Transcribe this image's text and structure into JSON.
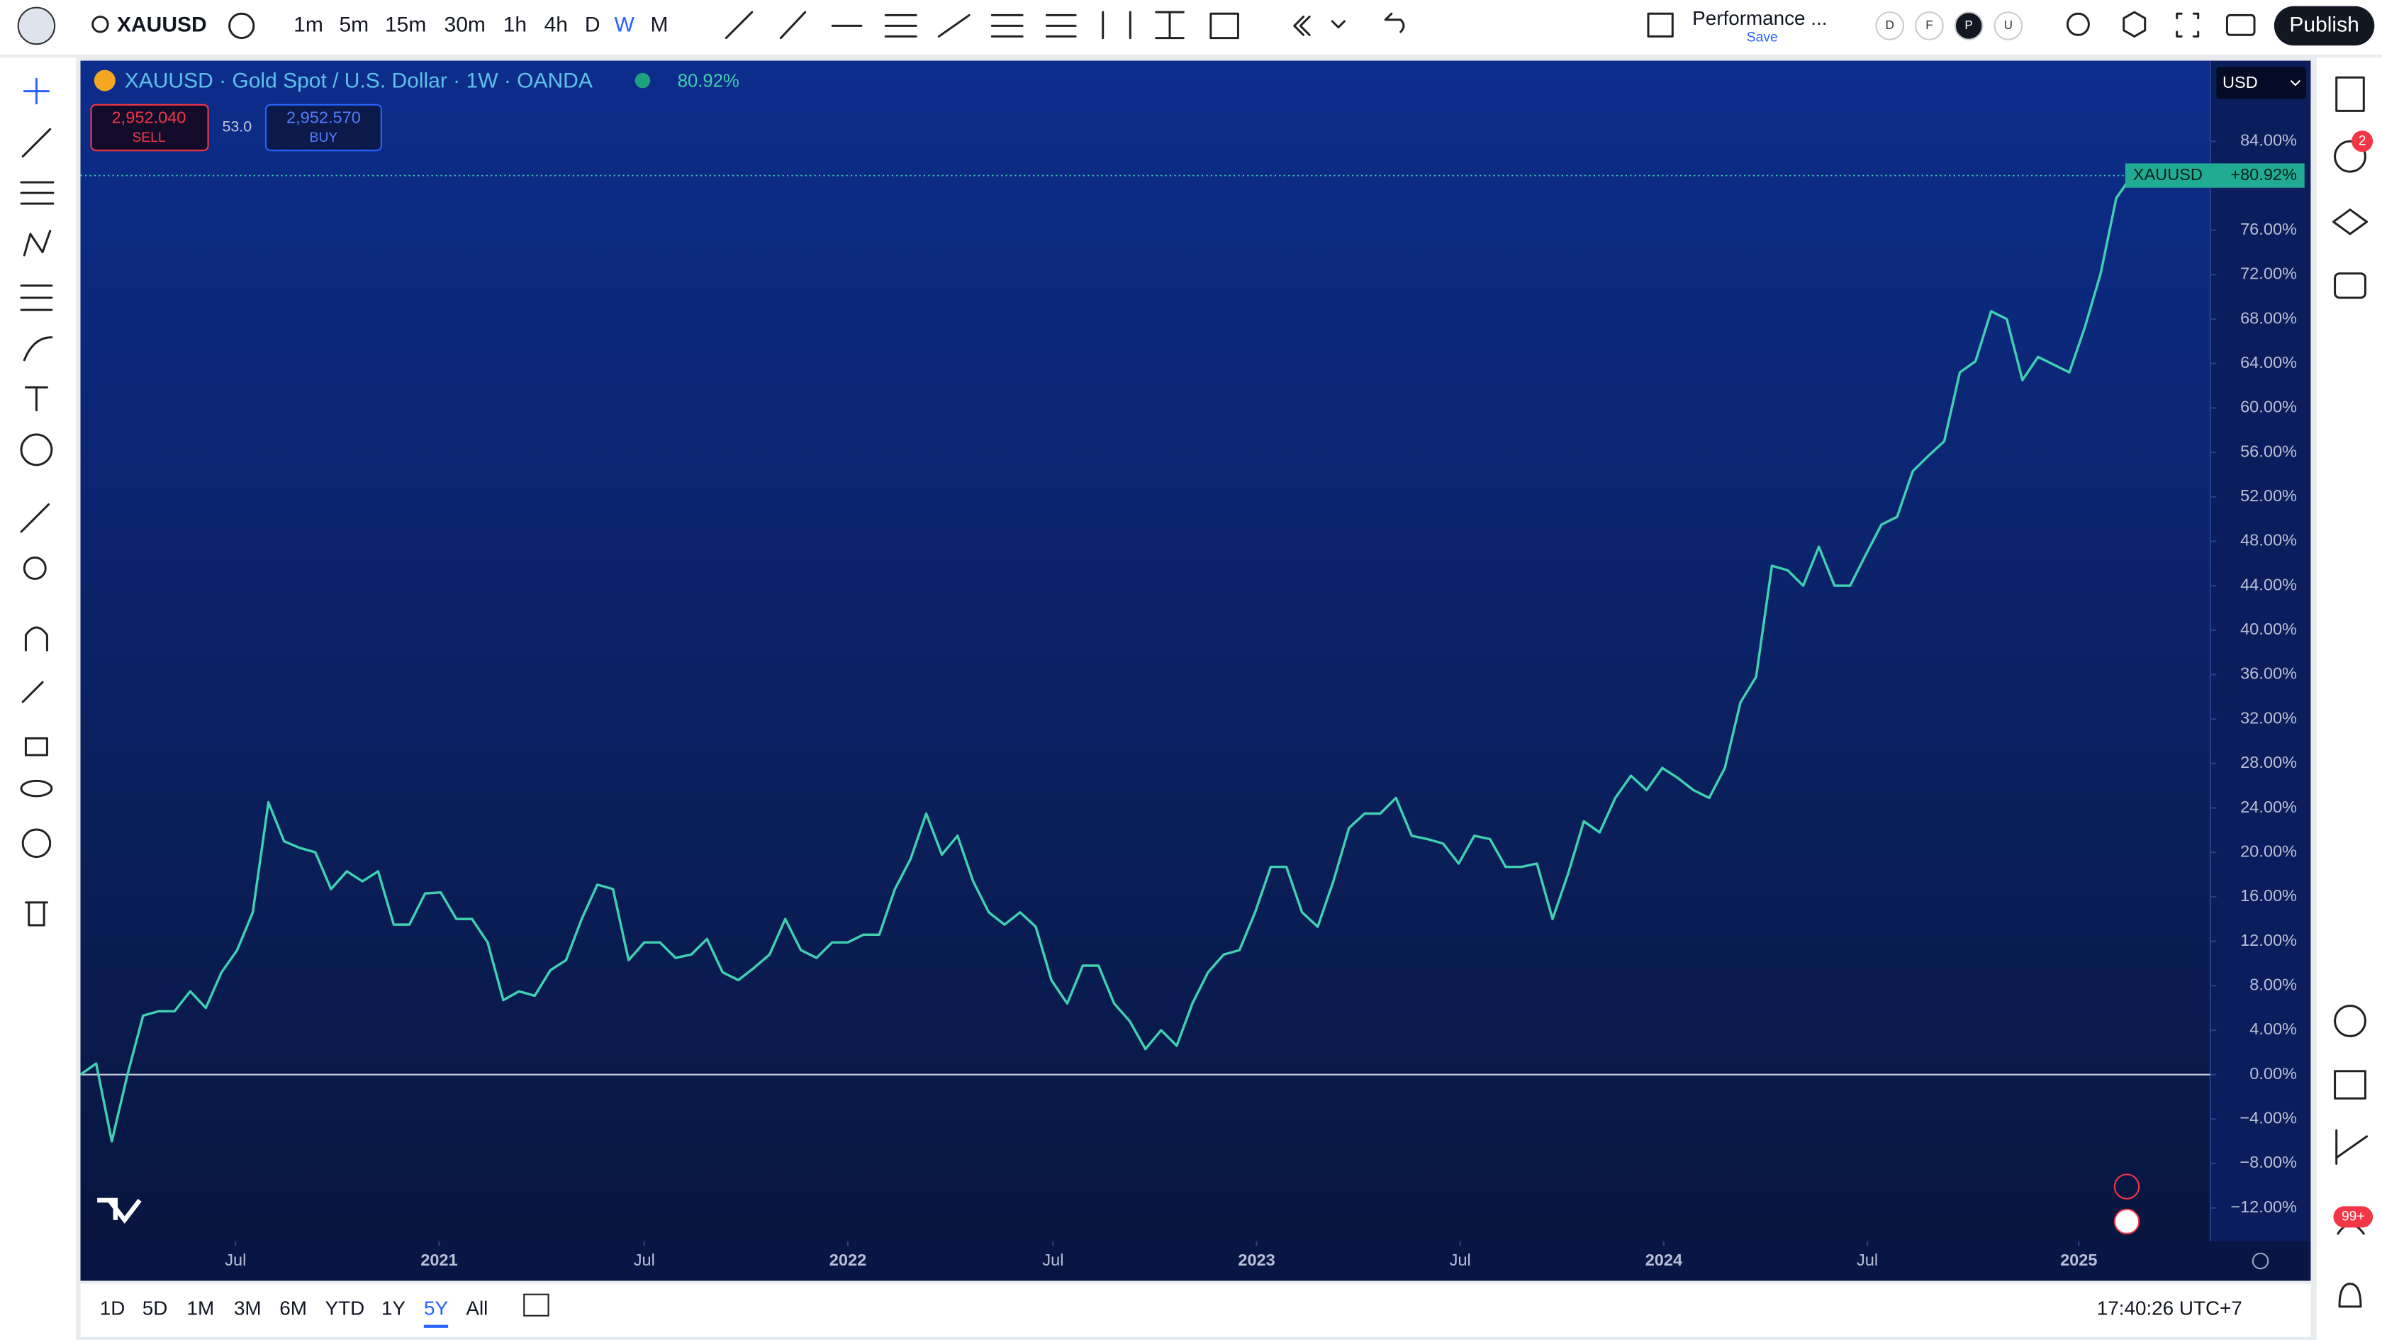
{
  "toolbar": {
    "symbol": "XAUUSD",
    "intervals": [
      "1m",
      "5m",
      "15m",
      "30m",
      "1h",
      "4h",
      "D",
      "W",
      "M"
    ],
    "layout_name": "Performance ...",
    "layout_save": "Save",
    "avatars": [
      "D",
      "F",
      "P",
      "U"
    ],
    "publish": "Publish"
  },
  "legend": {
    "title": "XAUUSD · Gold Spot / U.S. Dollar · 1W · OANDA",
    "change": "80.92%",
    "sell_price": "2,952.040",
    "sell": "SELL",
    "spread": "53.0",
    "buy_price": "2,952.570",
    "buy": "BUY"
  },
  "price_axis": {
    "currency": "USD",
    "symbol_tag": "XAUUSD",
    "last_label": "+80.92%"
  },
  "right_bar": {
    "alerts_badge": "2",
    "notifications_badge": "99+"
  },
  "bottom_bar": {
    "ranges": [
      "1D",
      "5D",
      "1M",
      "3M",
      "6M",
      "YTD",
      "1Y",
      "5Y",
      "All"
    ],
    "clock": "17:40:26 UTC+7"
  },
  "chart_data": {
    "type": "line",
    "color": "#3fd1b0",
    "values": [
      0,
      1,
      -6,
      0,
      5.3,
      5.7,
      5.7,
      7.5,
      6,
      9.2,
      11.2,
      14.6,
      24.5,
      21,
      20.4,
      20,
      16.7,
      18.3,
      17.4,
      18.3,
      13.5,
      13.5,
      16.3,
      16.4,
      14,
      14,
      11.9,
      6.7,
      7.5,
      7.1,
      9.4,
      10.3,
      14,
      17.1,
      16.7,
      10.3,
      11.9,
      11.9,
      10.5,
      10.8,
      12.2,
      9.2,
      8.5,
      9.6,
      10.8,
      14,
      11.2,
      10.5,
      11.9,
      11.9,
      12.6,
      12.6,
      16.7,
      19.4,
      23.5,
      19.8,
      21.5,
      17.4,
      14.6,
      13.5,
      14.6,
      13.3,
      8.5,
      6.4,
      9.8,
      9.8,
      6.4,
      4.8,
      2.3,
      4,
      2.6,
      6.4,
      9.2,
      10.8,
      11.2,
      14.6,
      18.7,
      18.7,
      14.6,
      13.3,
      17.4,
      22.2,
      23.5,
      23.5,
      24.9,
      21.5,
      21.2,
      20.8,
      19,
      21.5,
      21.2,
      18.7,
      18.7,
      19,
      14,
      18.1,
      22.8,
      21.8,
      24.9,
      26.9,
      25.6,
      27.6,
      26.7,
      25.6,
      24.9,
      27.6,
      33.5,
      35.8,
      45.8,
      45.4,
      44,
      47.5,
      44,
      44,
      46.8,
      49.5,
      50.2,
      54.3,
      55.7,
      57,
      63.2,
      64.2,
      68.7,
      68,
      62.5,
      64.6,
      63.9,
      63.2,
      67.3,
      72.1,
      78.9,
      80.92
    ],
    "xlim": [
      0,
      136
    ],
    "xticks": [
      {
        "value": 9.9,
        "label": "Jul"
      },
      {
        "value": 22.9,
        "label": "2021"
      },
      {
        "value": 36,
        "label": "Jul"
      },
      {
        "value": 49,
        "label": "2022"
      },
      {
        "value": 62.1,
        "label": "Jul"
      },
      {
        "value": 75.1,
        "label": "2023"
      },
      {
        "value": 88.1,
        "label": "Jul"
      },
      {
        "value": 101.1,
        "label": "2024"
      },
      {
        "value": 114.1,
        "label": "Jul"
      },
      {
        "value": 127.6,
        "label": "2025"
      }
    ],
    "ylim": [
      -15,
      91.25
    ],
    "yticks": [
      {
        "value": -12,
        "label": "−12.00%"
      },
      {
        "value": -8,
        "label": "−8.00%"
      },
      {
        "value": -4,
        "label": "−4.00%"
      },
      {
        "value": 0,
        "label": "0.00%"
      },
      {
        "value": 4,
        "label": "4.00%"
      },
      {
        "value": 8,
        "label": "8.00%"
      },
      {
        "value": 12,
        "label": "12.00%"
      },
      {
        "value": 16,
        "label": "16.00%"
      },
      {
        "value": 20,
        "label": "20.00%"
      },
      {
        "value": 24,
        "label": "24.00%"
      },
      {
        "value": 28,
        "label": "28.00%"
      },
      {
        "value": 32,
        "label": "32.00%"
      },
      {
        "value": 36,
        "label": "36.00%"
      },
      {
        "value": 40,
        "label": "40.00%"
      },
      {
        "value": 44,
        "label": "44.00%"
      },
      {
        "value": 48,
        "label": "48.00%"
      },
      {
        "value": 52,
        "label": "52.00%"
      },
      {
        "value": 56,
        "label": "56.00%"
      },
      {
        "value": 60,
        "label": "60.00%"
      },
      {
        "value": 64,
        "label": "64.00%"
      },
      {
        "value": 68,
        "label": "68.00%"
      },
      {
        "value": 72,
        "label": "72.00%"
      },
      {
        "value": 76,
        "label": "76.00%"
      },
      {
        "value": 84,
        "label": "84.00%"
      }
    ]
  }
}
